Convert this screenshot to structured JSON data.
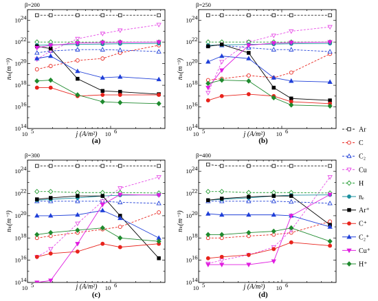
{
  "chart_data": {
    "type": "line",
    "x_scale": "log",
    "y_scale": "log",
    "xlim": [
      100000,
      4500000
    ],
    "ylim": [
      100000000000000.0,
      1e+25
    ],
    "x_ticks": [
      "10",
      "10"
    ],
    "x_tick_exponents": [
      "5",
      "6"
    ],
    "y_ticks": [
      "10",
      "10",
      "10",
      "10",
      "10",
      "10"
    ],
    "y_tick_exponents": [
      "14",
      "16",
      "18",
      "20",
      "22",
      "24"
    ],
    "xlabel": "j (A/m²)",
    "ylabel": "nₖ(m⁻³)",
    "legend_position": "right",
    "legend": [
      {
        "label": "Ar",
        "color": "#222222",
        "dashed": true,
        "marker": "square",
        "filled": false
      },
      {
        "label": "C",
        "color": "#e8231c",
        "dashed": true,
        "marker": "circle",
        "filled": false
      },
      {
        "label": "C₂",
        "color": "#1f3fd8",
        "dashed": true,
        "marker": "triangle-up",
        "filled": false
      },
      {
        "label": "Cu",
        "color": "#e64ce6",
        "dashed": true,
        "marker": "triangle-down",
        "filled": false
      },
      {
        "label": "H",
        "color": "#1f9b2e",
        "dashed": true,
        "marker": "diamond",
        "filled": false
      },
      {
        "label": "nₑ",
        "color": "#1a8f9e",
        "dashed": false,
        "marker": "circle",
        "filled": true
      },
      {
        "label": "Ar⁺",
        "color": "#000000",
        "dashed": false,
        "marker": "square",
        "filled": true
      },
      {
        "label": "C⁺",
        "color": "#e8231c",
        "dashed": false,
        "marker": "circle",
        "filled": true
      },
      {
        "label": "C₂⁺",
        "color": "#1f3fd8",
        "dashed": false,
        "marker": "triangle-up",
        "filled": true
      },
      {
        "label": "Cu⁺",
        "color": "#e01ee0",
        "dashed": false,
        "marker": "triangle-down",
        "filled": true
      },
      {
        "label": "H⁺",
        "color": "#1f8a2e",
        "dashed": false,
        "marker": "diamond",
        "filled": true
      }
    ],
    "panels": [
      {
        "label": "(a)",
        "beta": "β=200",
        "x": [
          130000,
          190000,
          400000,
          800000,
          1300000,
          3800000
        ],
        "series": [
          {
            "name": "Ar",
            "values": [
              3e+24,
              3e+24,
              3e+24,
              3e+24,
              3e+24,
              3e+24
            ]
          },
          {
            "name": "C",
            "values": [
              3e+19,
              6e+19,
              2e+20,
              3e+20,
              1e+21,
              5e+21
            ]
          },
          {
            "name": "C₂",
            "values": [
              1e+21,
              1.5e+21,
              2e+21,
              2e+21,
              1.8e+21,
              1.3e+21
            ]
          },
          {
            "name": "Cu",
            "values": [
              2.5e+20,
              1.5e+21,
              2e+22,
              6e+22,
              1.2e+23,
              4e+23
            ]
          },
          {
            "name": "H",
            "values": [
              1e+22,
              1e+22,
              1e+22,
              1e+22,
              1e+22,
              1e+22
            ]
          },
          {
            "name": "nₑ",
            "values": [
              5e+21,
              5.5e+21,
              6e+21,
              6.5e+21,
              7e+21,
              7.5e+21
            ]
          },
          {
            "name": "Ar⁺",
            "values": [
              4e+21,
              2.5e+21,
              4e+18,
              3e+17,
              2.5e+17,
              1.5e+17
            ]
          },
          {
            "name": "C⁺",
            "values": [
              6e+17,
              6e+17,
              1e+17,
              1.3e+17,
              1.3e+17,
              1.3e+17
            ]
          },
          {
            "name": "C₂⁺",
            "values": [
              3e+20,
              5e+20,
              2e+19,
              5e+18,
              6e+18,
              3.5e+18
            ]
          },
          {
            "name": "Cu⁺",
            "values": [
              3e+21,
              5e+21,
              8e+21,
              9e+21,
              9.5e+21,
              1e+22
            ]
          },
          {
            "name": "H⁺",
            "values": [
              2.5e+18,
              3e+18,
              1.3e+17,
              3e+16,
              2.5e+16,
              2e+16
            ]
          }
        ]
      },
      {
        "label": "(b)",
        "beta": "β=250",
        "x": [
          130000,
          190000,
          400000,
          800000,
          1300000,
          3800000
        ],
        "series": [
          {
            "name": "Ar",
            "values": [
              3e+24,
              3e+24,
              3e+24,
              3e+24,
              3e+24,
              3e+24
            ]
          },
          {
            "name": "C",
            "values": [
              3e+18,
              4e+18,
              8e+18,
              5e+18,
              1.5e+19,
              8e+20
            ]
          },
          {
            "name": "C₂",
            "values": [
              5e+21,
              5e+21,
              3e+21,
              2e+21,
              2e+21,
              1.3e+21
            ]
          },
          {
            "name": "Cu",
            "values": [
              2e+17,
              1.5e+20,
              1e+22,
              4e+22,
              1e+23,
              2.5e+23
            ]
          },
          {
            "name": "H",
            "values": [
              1e+22,
              1e+22,
              1e+22,
              1e+22,
              1e+22,
              1e+22
            ]
          },
          {
            "name": "nₑ",
            "values": [
              5e+21,
              5.5e+21,
              6e+21,
              6.5e+21,
              7e+21,
              7.5e+21
            ]
          },
          {
            "name": "Ar⁺",
            "values": [
              4e+21,
              6e+21,
              1e+21,
              6e+17,
              6e+16,
              4e+16
            ]
          },
          {
            "name": "C⁺",
            "values": [
              4e+16,
              1e+17,
              1.5e+17,
              1e+17,
              3e+16,
              2e+16
            ]
          },
          {
            "name": "C₂⁺",
            "values": [
              1.5e+20,
              5e+20,
              3e+20,
              5e+18,
              2.5e+18,
              2e+18
            ]
          },
          {
            "name": "Cu⁺",
            "values": [
              6e+17,
              2.5e+19,
              5e+21,
              8e+21,
              9e+21,
              1e+22
            ]
          },
          {
            "name": "H⁺",
            "values": [
              1.5e+18,
              3e+18,
              2.5e+18,
              7e+16,
              1.5e+16,
              1.2e+16
            ]
          }
        ]
      },
      {
        "label": "(c)",
        "beta": "β=300",
        "x": [
          130000,
          190000,
          400000,
          800000,
          1300000,
          3800000
        ],
        "series": [
          {
            "name": "Ar",
            "values": [
              3e+24,
              3e+24,
              3e+24,
              3e+24,
              3e+24,
              3e+24
            ]
          },
          {
            "name": "C",
            "values": [
              1e+18,
              1.5e+18,
              3e+18,
              6e+18,
              1e+19,
              2e+20
            ]
          },
          {
            "name": "C₂",
            "values": [
              2e+21,
              2e+21,
              2e+21,
              2e+21,
              1.6e+21,
              1.3e+21
            ]
          },
          {
            "name": "Cu",
            "values": [
              2e+16,
              1e+17,
              2e+19,
              2e+21,
              3e+22,
              3e+23
            ]
          },
          {
            "name": "H",
            "values": [
              1.5e+22,
              1.5e+22,
              1.2e+22,
              1.2e+22,
              1.2e+22,
              1.1e+22
            ]
          },
          {
            "name": "nₑ",
            "values": [
              2.5e+21,
              3e+21,
              4e+21,
              6e+21,
              7e+21,
              7.5e+21
            ]
          },
          {
            "name": "Ar⁺",
            "values": [
              3e+21,
              4e+21,
              6e+21,
              6e+21,
              1e+20,
              1.5e+16
            ]
          },
          {
            "name": "C⁺",
            "values": [
              2e+16,
              4e+16,
              6e+16,
              3e+17,
              1.5e+17,
              3e+17
            ]
          },
          {
            "name": "C₂⁺",
            "values": [
              1e+20,
              1e+20,
              1.2e+20,
              3e+20,
              6e+19,
              1e+18
            ]
          },
          {
            "name": "Cu⁺",
            "values": [
              100000000000000.0,
              150000000000000.0,
              3e+17,
              1e+21,
              8e+21,
              7e+21
            ]
          },
          {
            "name": "H⁺",
            "values": [
              2e+18,
              3e+18,
              5e+18,
              8e+18,
              1e+18,
              5e+17
            ]
          }
        ]
      },
      {
        "label": "(d)",
        "beta": "β=400",
        "x": [
          130000,
          190000,
          400000,
          800000,
          1300000,
          3800000
        ],
        "series": [
          {
            "name": "Ar",
            "values": [
              4e+24,
              3e+24,
              3e+24,
              3e+24,
              3e+24,
              3e+24
            ]
          },
          {
            "name": "C",
            "values": [
              1e+18,
              1e+18,
              1.5e+18,
              2e+18,
              3e+18,
              3e+19
            ]
          },
          {
            "name": "C₂",
            "values": [
              2e+21,
              2e+21,
              2e+21,
              2e+21,
              1.8e+21,
              1.3e+21
            ]
          },
          {
            "name": "Cu",
            "values": [
              5000000000000000.0,
              1e+16,
              3e+16,
              1.5e+17,
              5e+18,
              3e+23
            ]
          },
          {
            "name": "H",
            "values": [
              1.5e+22,
              1.5e+22,
              1.2e+22,
              1.2e+22,
              1.2e+22,
              1.1e+22
            ]
          },
          {
            "name": "nₑ",
            "values": [
              2.5e+21,
              3e+21,
              4e+21,
              6e+21,
              7e+21,
              7.5e+21
            ]
          },
          {
            "name": "Ar⁺",
            "values": [
              2.5e+21,
              3.5e+21,
              5e+21,
              6e+21,
              6e+21,
              1.5e+19
            ]
          },
          {
            "name": "C⁺",
            "values": [
              1.5e+16,
              2e+16,
              3e+16,
              1e+17,
              4e+17,
              2e+17
            ]
          },
          {
            "name": "C₂⁺",
            "values": [
              1.5e+20,
              1.2e+20,
              1.2e+20,
              1.2e+20,
              1e+20,
              1e+19
            ]
          },
          {
            "name": "Cu⁺",
            "values": [
              4000000000000000.0,
              4000000000000000.0,
              4000000000000000.0,
              8000000000000000.0,
              1e+20,
              8e+21
            ]
          },
          {
            "name": "H⁺",
            "values": [
              2e+18,
              2e+18,
              3e+18,
              4e+18,
              8e+18,
              5e+17
            ]
          }
        ]
      }
    ]
  }
}
